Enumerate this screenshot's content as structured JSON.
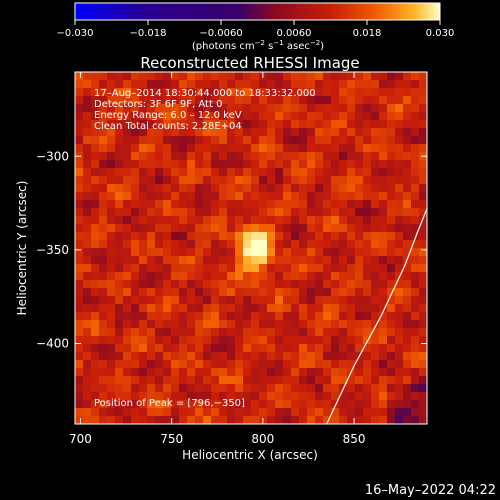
{
  "chart_data": {
    "type": "heatmap",
    "title": "Reconstructed RHESSI Image",
    "xlabel": "Heliocentric X (arcsec)",
    "ylabel": "Heliocentric Y (arcsec)",
    "xlim": [
      697,
      890
    ],
    "ylim": [
      -443,
      -255
    ],
    "x_ticks": [
      700,
      750,
      800,
      850
    ],
    "y_ticks": [
      -300,
      -350,
      -400
    ],
    "x_tick_labels": [
      "700",
      "750",
      "800",
      "850"
    ],
    "y_tick_labels": [
      "−300",
      "−350",
      "−400"
    ],
    "colorbar": {
      "range": [
        -0.03,
        0.03
      ],
      "ticks": [
        -0.03,
        -0.018,
        -0.006,
        0.006,
        0.018,
        0.03
      ],
      "tick_labels": [
        "−0.030",
        "−0.018",
        "−0.0060",
        "0.0060",
        "0.018",
        "0.030"
      ],
      "unit_prefix": "(photons cm",
      "unit_exp1": "−2",
      "unit_mid": " s",
      "unit_exp2": "−1",
      "unit_mid2": " asec",
      "unit_exp3": "−2",
      "unit_suffix": ")"
    },
    "info_lines": [
      "17–Aug–2014 18:30:44.000 to 18:33:32.000",
      "Detectors: 3F 6F 9F, Att 0",
      "Energy Range: 6.0 – 12.0 keV",
      "Clean     Total counts: 2.28E+04"
    ],
    "peak_text": "Position of Peak = [796,−350]",
    "peak": {
      "x": 796,
      "y": -350,
      "value": 0.03
    },
    "limb_curve": [
      [
        835,
        -443
      ],
      [
        850,
        -412
      ],
      [
        865,
        -385
      ],
      [
        878,
        -358
      ],
      [
        885,
        -340
      ],
      [
        890,
        -328
      ]
    ]
  },
  "footer_date": "16–May–2022 04:22",
  "colors": {
    "background": "#000000",
    "foreground": "#ffffff",
    "colormap": [
      "#0000ff",
      "#2a0090",
      "#3a006a",
      "#8b0a20",
      "#c81e0a",
      "#f05a00",
      "#ffb428",
      "#ffffc8"
    ]
  }
}
